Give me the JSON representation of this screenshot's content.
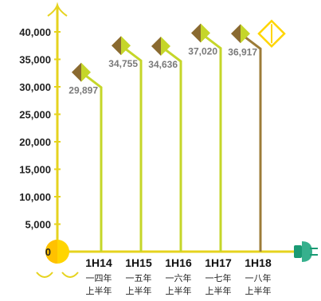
{
  "chart_data": {
    "type": "line",
    "title": "",
    "xlabel": "",
    "ylabel": "",
    "ylim": [
      0,
      40000
    ],
    "yticks": [
      "0",
      "5,000",
      "10,000",
      "15,000",
      "20,000",
      "25,000",
      "30,000",
      "35,000",
      "40,000"
    ],
    "categories": [
      "1H14",
      "1H15",
      "1H16",
      "1H17",
      "1H18"
    ],
    "category_sublabels": [
      [
        "一四年",
        "上半年"
      ],
      [
        "一五年",
        "上半年"
      ],
      [
        "一六年",
        "上半年"
      ],
      [
        "一七年",
        "上半年"
      ],
      [
        "一八年",
        "上半年"
      ]
    ],
    "values": [
      29897,
      34755,
      34636,
      37020,
      36917
    ],
    "value_labels": [
      "29,897",
      "34,755",
      "34,636",
      "37,020",
      "36,917"
    ],
    "colors": {
      "axis": "#e6d31e",
      "line": "#c5d629",
      "line_last": "#9c7c38",
      "marker_dark": "#8a6a30",
      "marker_light": "#c5d629",
      "plug": "#1a9a74"
    },
    "grid": false,
    "legend": "none"
  }
}
